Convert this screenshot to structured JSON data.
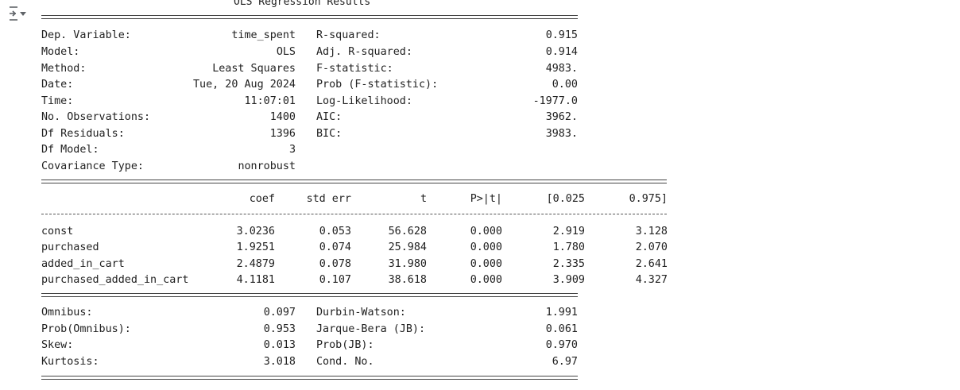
{
  "gutter": {
    "icon": "output-collapse-icon"
  },
  "title": "OLS Regression Results",
  "summary_left": [
    {
      "label": "Dep. Variable:",
      "value": "time_spent"
    },
    {
      "label": "Model:",
      "value": "OLS"
    },
    {
      "label": "Method:",
      "value": "Least Squares"
    },
    {
      "label": "Date:",
      "value": "Tue, 20 Aug 2024"
    },
    {
      "label": "Time:",
      "value": "11:07:01"
    },
    {
      "label": "No. Observations:",
      "value": "1400"
    },
    {
      "label": "Df Residuals:",
      "value": "1396"
    },
    {
      "label": "Df Model:",
      "value": "3"
    },
    {
      "label": "Covariance Type:",
      "value": "nonrobust"
    }
  ],
  "summary_right": [
    {
      "label": "R-squared:",
      "value": "0.915"
    },
    {
      "label": "Adj. R-squared:",
      "value": "0.914"
    },
    {
      "label": "F-statistic:",
      "value": "4983."
    },
    {
      "label": "Prob (F-statistic):",
      "value": "0.00"
    },
    {
      "label": "Log-Likelihood:",
      "value": "-1977.0"
    },
    {
      "label": "AIC:",
      "value": "3962."
    },
    {
      "label": "BIC:",
      "value": "3983."
    }
  ],
  "coef_table": {
    "headers": [
      "coef",
      "std err",
      "t",
      "P>|t|",
      "[0.025",
      "0.975]"
    ],
    "rows": [
      {
        "name": "const",
        "cells": [
          "3.0236",
          "0.053",
          "56.628",
          "0.000",
          "2.919",
          "3.128"
        ]
      },
      {
        "name": "purchased",
        "cells": [
          "1.9251",
          "0.074",
          "25.984",
          "0.000",
          "1.780",
          "2.070"
        ]
      },
      {
        "name": "added_in_cart",
        "cells": [
          "2.4879",
          "0.078",
          "31.980",
          "0.000",
          "2.335",
          "2.641"
        ]
      },
      {
        "name": "purchased_added_in_cart",
        "cells": [
          "4.1181",
          "0.107",
          "38.618",
          "0.000",
          "3.909",
          "4.327"
        ]
      }
    ]
  },
  "diagnostics_left": [
    {
      "label": "Omnibus:",
      "value": "0.097"
    },
    {
      "label": "Prob(Omnibus):",
      "value": "0.953"
    },
    {
      "label": "Skew:",
      "value": "0.013"
    },
    {
      "label": "Kurtosis:",
      "value": "3.018"
    }
  ],
  "diagnostics_right": [
    {
      "label": "Durbin-Watson:",
      "value": "1.991"
    },
    {
      "label": "Jarque-Bera (JB):",
      "value": "0.061"
    },
    {
      "label": "Prob(JB):",
      "value": "0.970"
    },
    {
      "label": "Cond. No.",
      "value": "6.97"
    }
  ]
}
